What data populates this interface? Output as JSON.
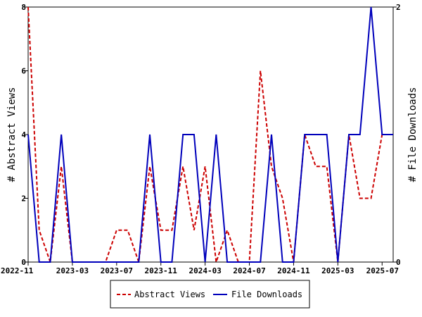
{
  "chart_data": {
    "type": "line",
    "title": "",
    "x_tick_labels": [
      "2022-11",
      "2023-03",
      "2023-07",
      "2023-11",
      "2024-03",
      "2024-07",
      "2024-11",
      "2025-03",
      "2025-07"
    ],
    "x": [
      "2022-11",
      "2022-12",
      "2023-01",
      "2023-02",
      "2023-03",
      "2023-04",
      "2023-05",
      "2023-06",
      "2023-07",
      "2023-08",
      "2023-09",
      "2023-10",
      "2023-11",
      "2023-12",
      "2024-01",
      "2024-02",
      "2024-03",
      "2024-04",
      "2024-05",
      "2024-06",
      "2024-07",
      "2024-08",
      "2024-09",
      "2024-10",
      "2024-11",
      "2024-12",
      "2025-01",
      "2025-02",
      "2025-03",
      "2025-04",
      "2025-05",
      "2025-06",
      "2025-07",
      "2025-08"
    ],
    "y_left_label": "# Abstract Views",
    "y_right_label": "# File Downloads",
    "y_left_lim": [
      0,
      8
    ],
    "y_right_lim": [
      0,
      2
    ],
    "y_left_ticks": [
      "0",
      "2",
      "4",
      "6",
      "8"
    ],
    "y_right_ticks": [
      "0",
      "2"
    ],
    "series": [
      {
        "name": "Abstract Views",
        "axis": "left",
        "color": "#cc0000",
        "dash": "dashed",
        "values": [
          8,
          1,
          0,
          3,
          0,
          0,
          0,
          0,
          1,
          1,
          0,
          3,
          1,
          1,
          3,
          1,
          3,
          0,
          1,
          0,
          0,
          6,
          3,
          2,
          0,
          4,
          3,
          3,
          0,
          4,
          2,
          2,
          4,
          4
        ]
      },
      {
        "name": "File Downloads",
        "axis": "right",
        "color": "#0000bb",
        "dash": "solid",
        "values": [
          1,
          0,
          0,
          1,
          0,
          0,
          0,
          0,
          0,
          0,
          0,
          1,
          0,
          0,
          1,
          1,
          0,
          1,
          0,
          0,
          0,
          0,
          1,
          0,
          0,
          1,
          1,
          1,
          0,
          1,
          1,
          2,
          1,
          1
        ]
      }
    ],
    "grid": false,
    "legend_position": "bottom"
  }
}
